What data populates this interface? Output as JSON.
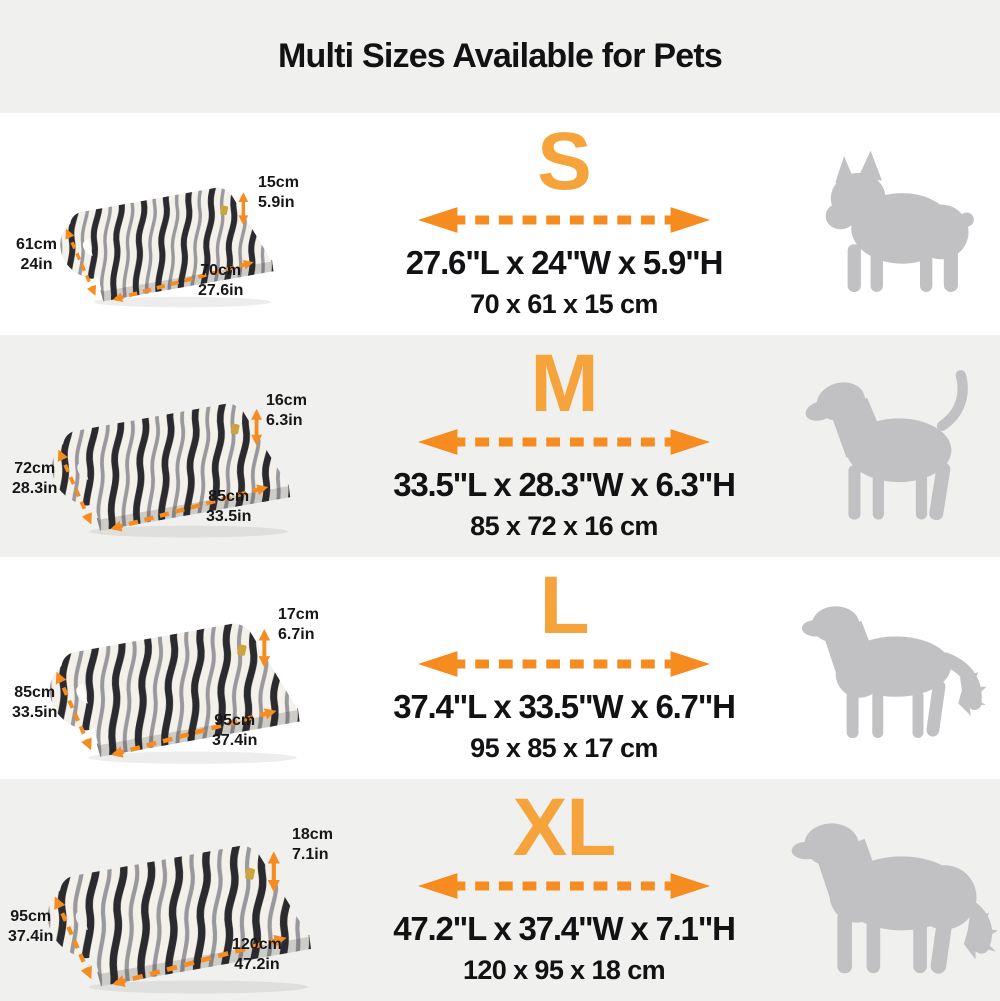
{
  "title": "Multi Sizes Available for Pets",
  "colors": {
    "accent_letter": "#F6A33C",
    "arrow_orange": "#F68B20",
    "dog_gray": "#C1C1C4",
    "band_gray": "#F0F0EE",
    "text_dark": "#17171A",
    "bed_black": "#2B2B2F",
    "bed_gray": "#98989D",
    "bed_cream": "#F3F1EA",
    "tag_gold": "#CDA43C"
  },
  "rows": [
    {
      "size": "S",
      "dog_icon": "french-bulldog-silhouette",
      "dims_inches": "27.6\"L x 24\"W x 5.9\"H",
      "dims_cm": "70 x 61 x 15 cm",
      "height_cm": "15cm",
      "height_in": "5.9in",
      "width_cm": "61cm",
      "width_in": "24in",
      "length_cm": "70cm",
      "length_in": "27.6in"
    },
    {
      "size": "M",
      "dog_icon": "beagle-silhouette",
      "dims_inches": "33.5\"L x 28.3\"W x 6.3\"H",
      "dims_cm": "85 x 72 x 16 cm",
      "height_cm": "16cm",
      "height_in": "6.3in",
      "width_cm": "72cm",
      "width_in": "28.3in",
      "length_cm": "85cm",
      "length_in": "33.5in"
    },
    {
      "size": "L",
      "dog_icon": "retriever-silhouette",
      "dims_inches": "37.4\"L x 33.5\"W x 6.7\"H",
      "dims_cm": "95 x 85 x 17 cm",
      "height_cm": "17cm",
      "height_in": "6.7in",
      "width_cm": "85cm",
      "width_in": "33.5in",
      "length_cm": "95cm",
      "length_in": "37.4in"
    },
    {
      "size": "XL",
      "dog_icon": "golden-retriever-silhouette",
      "dims_inches": "47.2\"L x 37.4\"W x 7.1\"H",
      "dims_cm": "120 x 95 x 18 cm",
      "height_cm": "18cm",
      "height_in": "7.1in",
      "width_cm": "95cm",
      "width_in": "37.4in",
      "length_cm": "120cm",
      "length_in": "47.2in"
    }
  ]
}
